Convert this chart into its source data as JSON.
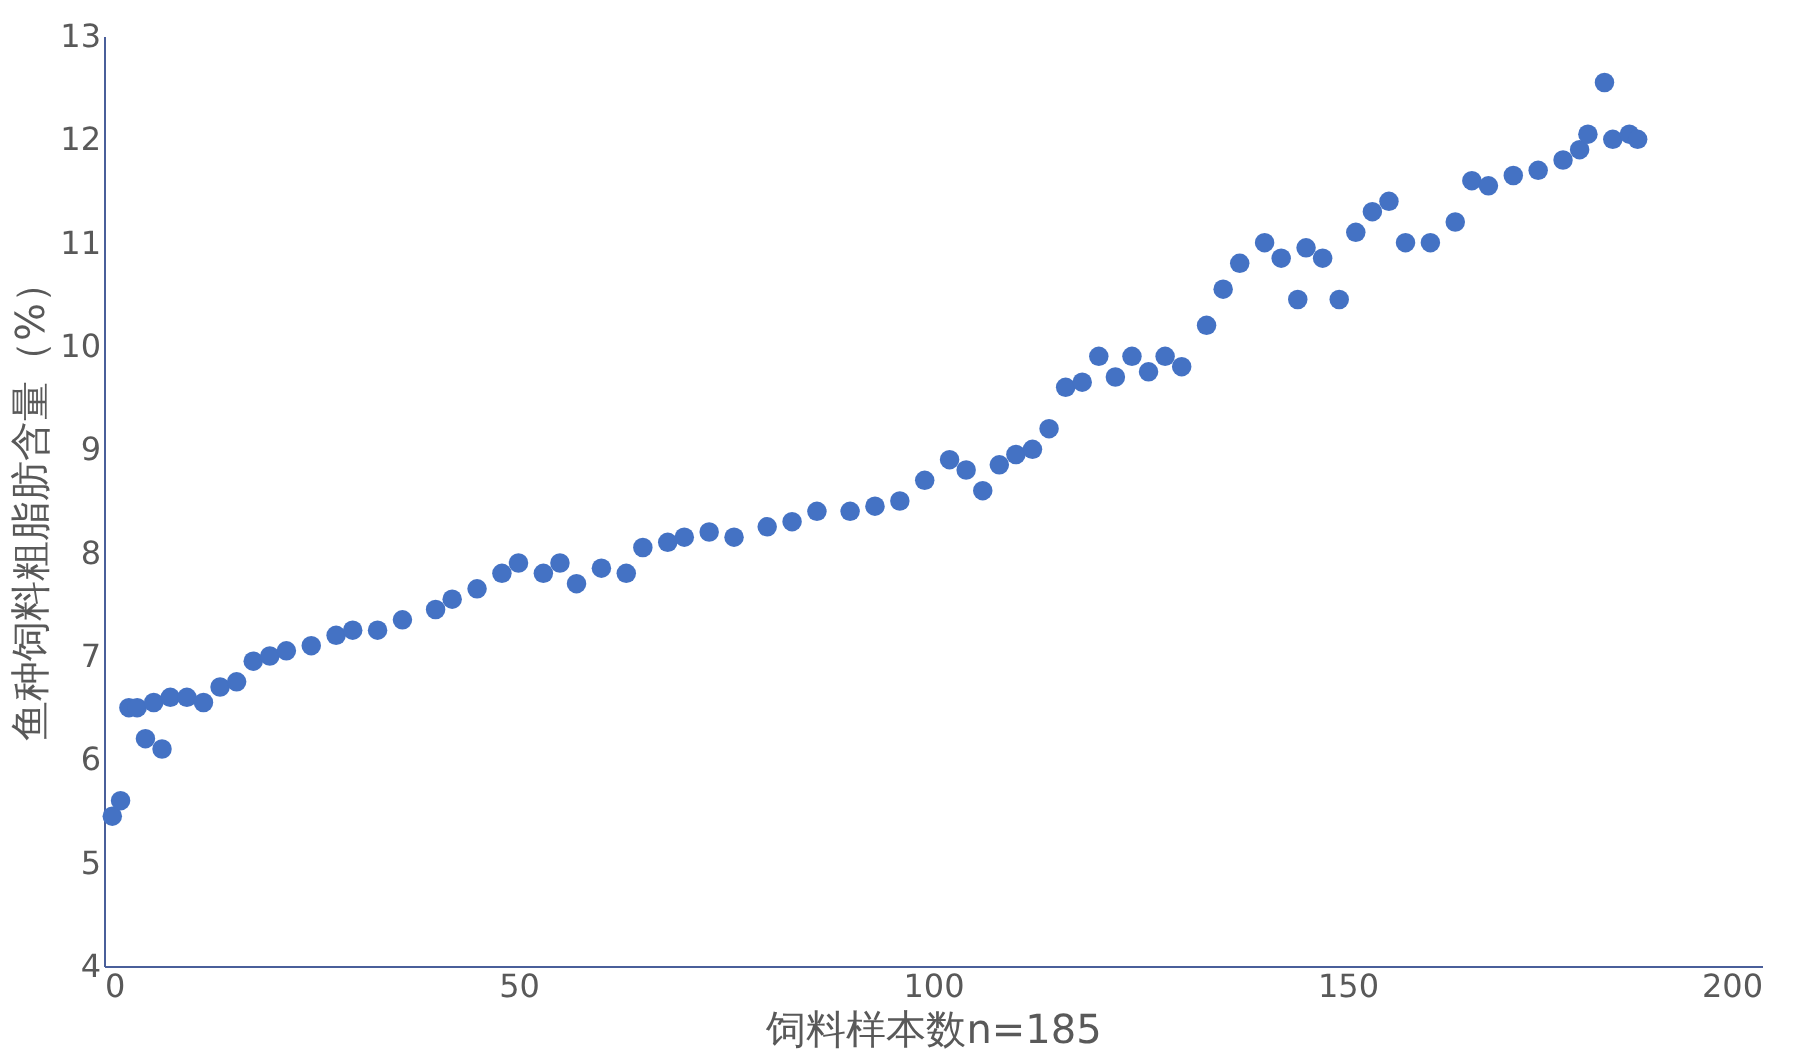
{
  "chart_data": {
    "type": "scatter",
    "xlabel": "饲料样本数n=185",
    "ylabel": "鱼种饲料粗脂肪含量（%）",
    "x": [
      1,
      2,
      3,
      4,
      5,
      6,
      7,
      8,
      10,
      12,
      14,
      16,
      18,
      20,
      22,
      25,
      28,
      30,
      33,
      36,
      40,
      42,
      45,
      48,
      50,
      53,
      55,
      57,
      60,
      63,
      65,
      68,
      70,
      73,
      76,
      80,
      83,
      86,
      90,
      93,
      96,
      99,
      102,
      104,
      106,
      108,
      110,
      112,
      114,
      116,
      118,
      120,
      122,
      124,
      126,
      128,
      130,
      133,
      135,
      137,
      140,
      142,
      144,
      145,
      147,
      149,
      151,
      153,
      155,
      157,
      160,
      163,
      165,
      167,
      170,
      173,
      176,
      178,
      179,
      181,
      182,
      184,
      185
    ],
    "series": [
      {
        "color": "#4472c4",
        "values": [
          5.45,
          5.6,
          6.5,
          6.5,
          6.2,
          6.55,
          6.1,
          6.6,
          6.6,
          6.55,
          6.7,
          6.75,
          6.95,
          7.0,
          7.05,
          7.1,
          7.2,
          7.25,
          7.25,
          7.35,
          7.45,
          7.55,
          7.65,
          7.8,
          7.9,
          7.8,
          7.9,
          7.7,
          7.85,
          7.8,
          8.05,
          8.1,
          8.15,
          8.2,
          8.15,
          8.25,
          8.3,
          8.4,
          8.4,
          8.45,
          8.5,
          8.7,
          8.9,
          8.8,
          8.6,
          8.85,
          8.95,
          9.0,
          9.2,
          9.6,
          9.65,
          9.9,
          9.7,
          9.9,
          9.75,
          9.9,
          9.8,
          10.2,
          10.55,
          10.8,
          11.0,
          10.85,
          10.45,
          10.95,
          10.85,
          10.45,
          11.1,
          11.3,
          11.4,
          11.0,
          11.0,
          11.2,
          11.6,
          11.55,
          11.65,
          11.7,
          11.8,
          11.9,
          12.05,
          12.55,
          12.0,
          12.05,
          12.0
        ]
      }
    ],
    "xlim": [
      0,
      200
    ],
    "xticks": [
      0,
      50,
      100,
      150,
      200
    ],
    "ylim": [
      4,
      13
    ],
    "yticks": [
      4,
      5,
      6,
      7,
      8,
      9,
      10,
      11,
      12,
      13
    ],
    "grid": false,
    "marker": "circle"
  }
}
